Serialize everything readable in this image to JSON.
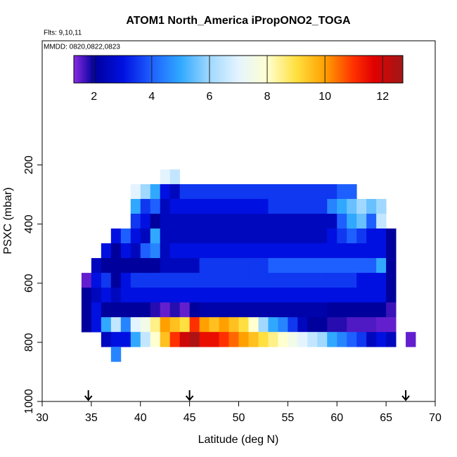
{
  "chart_data": {
    "type": "heatmap",
    "title": "ATOM1 North_America iPropONO2_TOGA",
    "subtitle": "Flts: 9,10,11",
    "annotation": "MMDD: 0820,0822,0823",
    "xlabel": "Latitude (deg N)",
    "ylabel": "PSXC (mbar)",
    "xlim": [
      30,
      70
    ],
    "ylim": [
      1000,
      -220
    ],
    "xticks": [
      30,
      35,
      40,
      45,
      50,
      55,
      60,
      65,
      70
    ],
    "yticks": [
      200,
      400,
      600,
      800,
      1000
    ],
    "x": [
      34.5,
      35.5,
      36.5,
      37.5,
      38.5,
      39.5,
      40.5,
      41.5,
      42.5,
      43.5,
      44.5,
      45.5,
      46.5,
      47.5,
      48.5,
      49.5,
      50.5,
      51.5,
      52.5,
      53.5,
      54.5,
      55.5,
      56.5,
      57.5,
      58.5,
      59.5,
      60.5,
      61.5,
      62.5,
      63.5,
      64.5,
      65.5,
      66.5,
      67.5
    ],
    "y": [
      240,
      290,
      340,
      390,
      440,
      490,
      540,
      590,
      640,
      690,
      740,
      790,
      840
    ],
    "z": [
      [
        null,
        null,
        null,
        null,
        null,
        null,
        null,
        null,
        7,
        6.5,
        null,
        null,
        null,
        null,
        null,
        null,
        null,
        null,
        null,
        null,
        null,
        null,
        null,
        null,
        null,
        null,
        null,
        null,
        null,
        null,
        null,
        null,
        null,
        null
      ],
      [
        null,
        null,
        null,
        null,
        null,
        7,
        6,
        5,
        3,
        2.5,
        3.5,
        3.5,
        3.5,
        3.5,
        3.5,
        3.5,
        3.5,
        3.5,
        3.5,
        3.5,
        3.5,
        3.5,
        3.5,
        3.5,
        3.5,
        3.5,
        4,
        4,
        null,
        null,
        null,
        null,
        null,
        null
      ],
      [
        null,
        null,
        null,
        null,
        null,
        5,
        3.5,
        4,
        2.5,
        3,
        3,
        3,
        3,
        3,
        3,
        3,
        3,
        3,
        3,
        3.5,
        3.5,
        3.5,
        3.5,
        3.5,
        3.5,
        4.5,
        5,
        5.5,
        6,
        5.5,
        6,
        null,
        null,
        null
      ],
      [
        null,
        null,
        null,
        null,
        null,
        3.5,
        3,
        2,
        2.5,
        2.5,
        2.5,
        2.5,
        2.5,
        2.5,
        2.5,
        2.5,
        2.5,
        2.5,
        2.5,
        2.5,
        2.5,
        2.5,
        2.5,
        2.5,
        2.5,
        2.5,
        4,
        5,
        5.5,
        4,
        6.5,
        null,
        null,
        null
      ],
      [
        null,
        null,
        null,
        3,
        4,
        3,
        2.5,
        5,
        2.5,
        2.5,
        2.5,
        2.5,
        2.5,
        2.5,
        2.5,
        2.5,
        2.5,
        2.5,
        2.5,
        2.5,
        2.5,
        2.5,
        2.5,
        2.5,
        2.5,
        3,
        3.5,
        4,
        3.5,
        3,
        3,
        2,
        null,
        null
      ],
      [
        null,
        null,
        3,
        2,
        3,
        2.5,
        4,
        4.5,
        2.5,
        3,
        3,
        3,
        3,
        3,
        3,
        3,
        3,
        3,
        3,
        3,
        3,
        3,
        3,
        3,
        3,
        3,
        3,
        3,
        3,
        3,
        3,
        2,
        null,
        null
      ],
      [
        null,
        2.5,
        2,
        2,
        2,
        2,
        2,
        2,
        2.5,
        2.5,
        2.5,
        2.5,
        3.5,
        3.5,
        3.5,
        3.5,
        3.5,
        3.5,
        3.5,
        4,
        4,
        4,
        4,
        4,
        4,
        4,
        4,
        4,
        4,
        4,
        5,
        2,
        null,
        null
      ],
      [
        1.5,
        3,
        3.5,
        2,
        3,
        3.5,
        3.5,
        3.5,
        3.5,
        3.5,
        3.5,
        3.5,
        3.5,
        3.5,
        3.5,
        3.5,
        3.5,
        3.5,
        3.5,
        3.5,
        3.5,
        3.5,
        3.5,
        3.5,
        3.5,
        3.5,
        3.5,
        3.5,
        3,
        3,
        3,
        2,
        null,
        null
      ],
      [
        2,
        2.5,
        3,
        2.5,
        3,
        3,
        3,
        3,
        3,
        3,
        3,
        3,
        3,
        3,
        3,
        3,
        3,
        3,
        3,
        3,
        3,
        3,
        3,
        3,
        3,
        3,
        3,
        3,
        3,
        3,
        3,
        2,
        null,
        null
      ],
      [
        2,
        3,
        2,
        2,
        2,
        2,
        2,
        1.8,
        1.5,
        1.8,
        1.5,
        2,
        2.2,
        2.2,
        2.2,
        2.2,
        2.2,
        2.2,
        2.2,
        2.2,
        2.2,
        2.2,
        2.2,
        2.2,
        2.2,
        2,
        2,
        2,
        2,
        2,
        2,
        1.7,
        null,
        null
      ],
      [
        2,
        3,
        5,
        6.5,
        4.5,
        7,
        7.5,
        8.5,
        10,
        9.5,
        9,
        11,
        10,
        9.5,
        10,
        9.5,
        9,
        8,
        6,
        5,
        4.5,
        3.5,
        2.5,
        2,
        2,
        1.8,
        1.8,
        1.6,
        1.6,
        1.6,
        1.5,
        1.5,
        null,
        null
      ],
      [
        null,
        null,
        2.5,
        3,
        3,
        5,
        6.5,
        8,
        9.5,
        11,
        12,
        12.5,
        11.5,
        11.5,
        11,
        10.5,
        10,
        9.5,
        9,
        8.5,
        8,
        7.5,
        7,
        6.5,
        6,
        5,
        4.5,
        4,
        3.5,
        2.5,
        3,
        2.5,
        null,
        1.5
      ],
      [
        null,
        null,
        null,
        4.5,
        null,
        null,
        null,
        null,
        null,
        null,
        null,
        null,
        null,
        null,
        null,
        null,
        null,
        null,
        null,
        null,
        null,
        null,
        null,
        null,
        null,
        null,
        null,
        null,
        null,
        null,
        null,
        null,
        null,
        null
      ]
    ],
    "clim": [
      1.3,
      12.7
    ],
    "cticks": [
      2,
      4,
      6,
      8,
      10,
      12
    ],
    "colorscale": [
      [
        1.3,
        "#8a2be2"
      ],
      [
        2,
        "#00009c"
      ],
      [
        3,
        "#0010e0"
      ],
      [
        4,
        "#1e60ff"
      ],
      [
        5,
        "#30a8ff"
      ],
      [
        6,
        "#a0d8ff"
      ],
      [
        7,
        "#e4f4ff"
      ],
      [
        8,
        "#ffffd0"
      ],
      [
        9,
        "#ffe040"
      ],
      [
        10,
        "#ffa000"
      ],
      [
        11,
        "#ff3000"
      ],
      [
        11.7,
        "#e00000"
      ],
      [
        12.7,
        "#a01818"
      ]
    ],
    "markers_x": [
      34.7,
      45,
      67
    ]
  }
}
